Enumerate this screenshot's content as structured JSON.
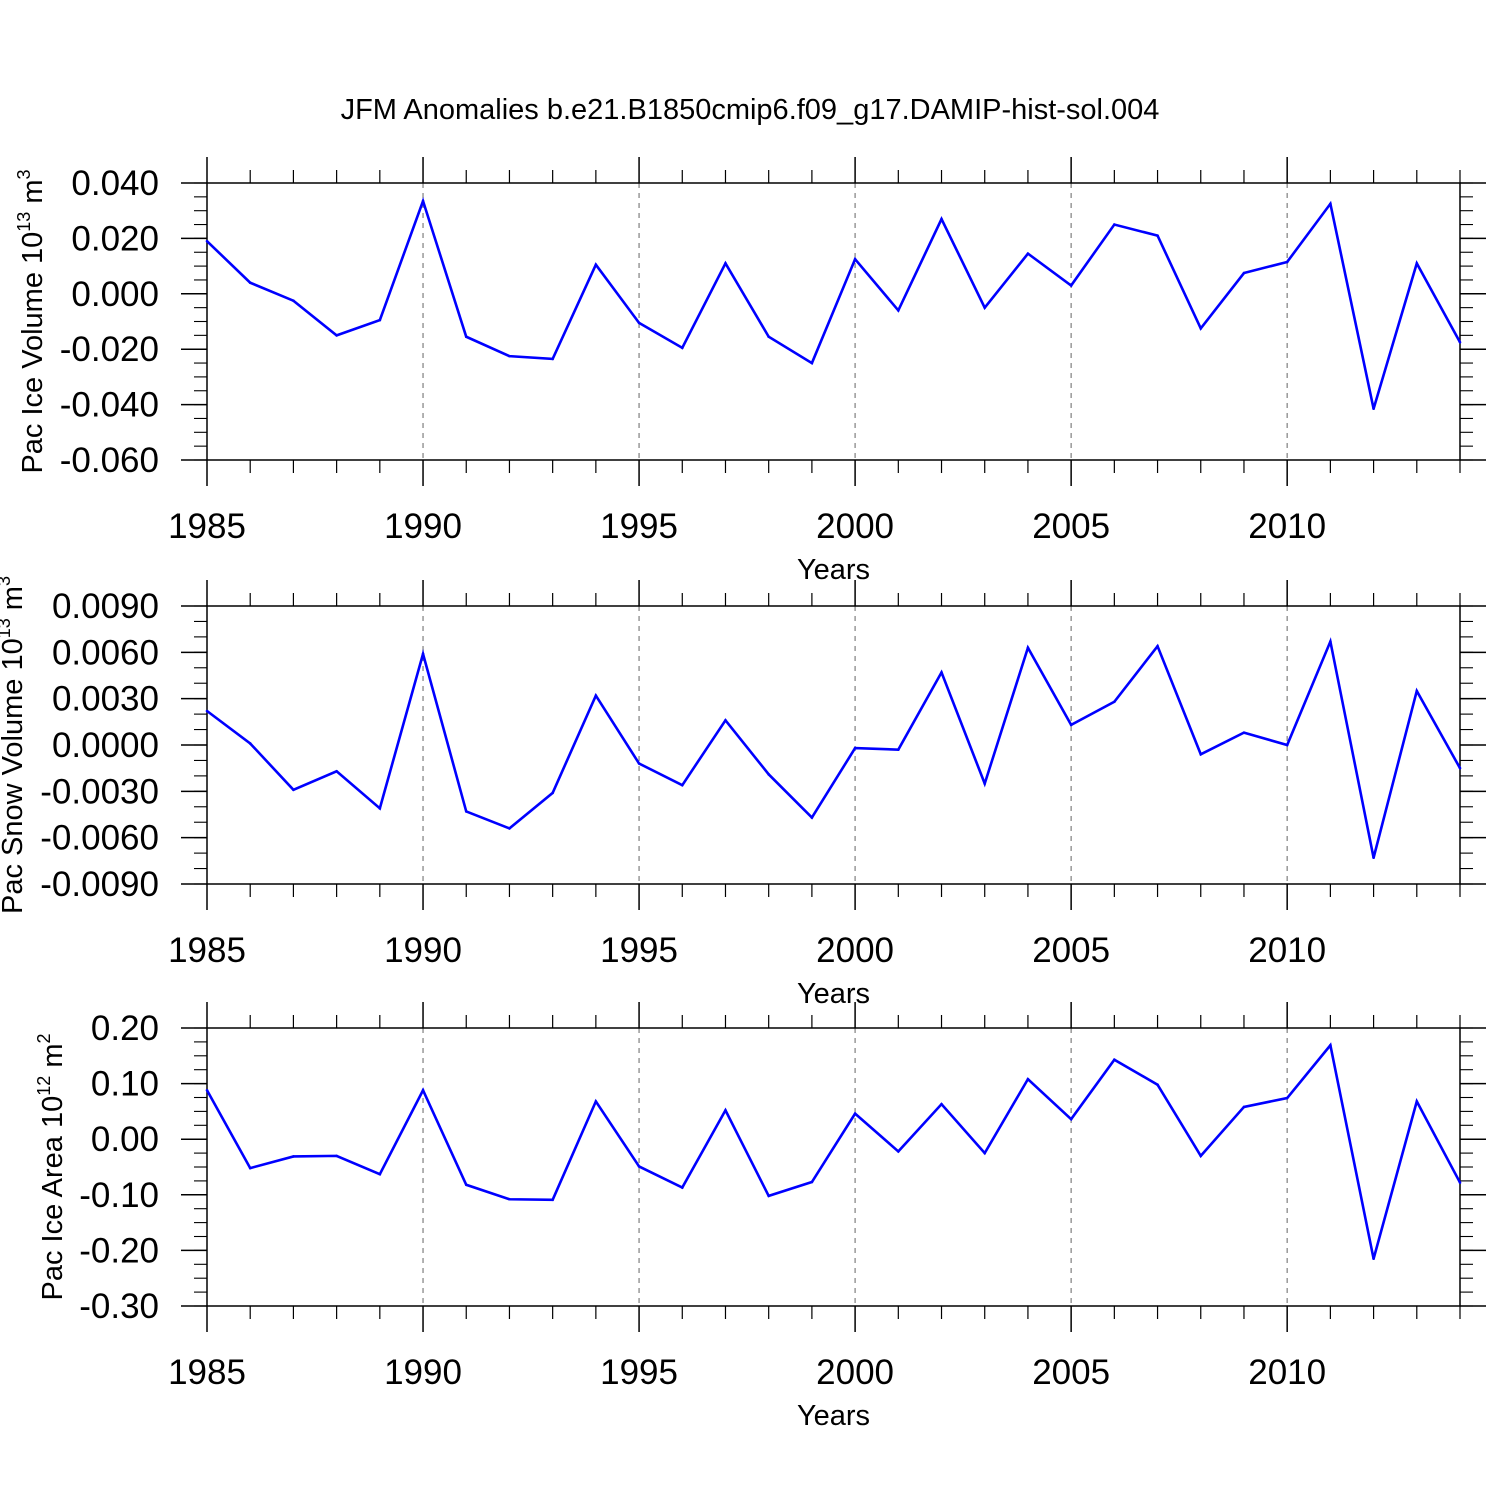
{
  "figure": {
    "title": "JFM Anomalies b.e21.B1850cmip6.f09_g17.DAMIP-hist-sol.004",
    "line_color": "#0000ff",
    "grid_color": "#888888"
  },
  "chart_data": [
    {
      "type": "line",
      "title": "",
      "xlabel": "Years",
      "ylabel": {
        "text": "Pac Ice Volume 10",
        "exponent": "13",
        "unit": " m",
        "unit_exponent": "3"
      },
      "xlim": [
        1985,
        2014
      ],
      "ylim": [
        -0.06,
        0.04
      ],
      "xticks": [
        1985,
        1990,
        1995,
        2000,
        2005,
        2010
      ],
      "xtick_labels": [
        "1985",
        "1990",
        "1995",
        "2000",
        "2005",
        "2010"
      ],
      "yticks": [
        -0.06,
        -0.04,
        -0.02,
        0.0,
        0.02,
        0.04
      ],
      "ytick_labels": [
        "-0.060",
        "-0.040",
        "-0.020",
        "0.000",
        "0.020",
        "0.040"
      ],
      "yminor_step": 0.005,
      "grid": "x-dashed",
      "x": [
        1985,
        1986,
        1987,
        1988,
        1989,
        1990,
        1991,
        1992,
        1993,
        1994,
        1995,
        1996,
        1997,
        1998,
        1999,
        2000,
        2001,
        2002,
        2003,
        2004,
        2005,
        2006,
        2007,
        2008,
        2009,
        2010,
        2011,
        2012,
        2013,
        2014
      ],
      "series": [
        {
          "name": "Pac Ice Volume",
          "values": [
            0.019,
            0.004,
            -0.0025,
            -0.015,
            -0.0095,
            0.0335,
            -0.0155,
            -0.0225,
            -0.0235,
            0.0105,
            -0.0105,
            -0.0195,
            0.011,
            -0.0155,
            -0.025,
            0.0125,
            -0.006,
            0.027,
            -0.005,
            0.0145,
            0.003,
            0.025,
            0.021,
            -0.0125,
            0.0075,
            0.0115,
            0.0325,
            -0.0415,
            0.011,
            -0.0175
          ]
        }
      ]
    },
    {
      "type": "line",
      "title": "",
      "xlabel": "Years",
      "ylabel": {
        "text": "Pac Snow Volume 10",
        "exponent": "13",
        "unit": " m",
        "unit_exponent": "3"
      },
      "xlim": [
        1985,
        2014
      ],
      "ylim": [
        -0.009,
        0.009
      ],
      "xticks": [
        1985,
        1990,
        1995,
        2000,
        2005,
        2010
      ],
      "xtick_labels": [
        "1985",
        "1990",
        "1995",
        "2000",
        "2005",
        "2010"
      ],
      "yticks": [
        -0.009,
        -0.006,
        -0.003,
        0.0,
        0.003,
        0.006,
        0.009
      ],
      "ytick_labels": [
        "-0.0090",
        "-0.0060",
        "-0.0030",
        "0.0000",
        "0.0030",
        "0.0060",
        "0.0090"
      ],
      "yminor_step": 0.001,
      "grid": "x-dashed",
      "x": [
        1985,
        1986,
        1987,
        1988,
        1989,
        1990,
        1991,
        1992,
        1993,
        1994,
        1995,
        1996,
        1997,
        1998,
        1999,
        2000,
        2001,
        2002,
        2003,
        2004,
        2005,
        2006,
        2007,
        2008,
        2009,
        2010,
        2011,
        2012,
        2013,
        2014
      ],
      "series": [
        {
          "name": "Pac Snow Volume",
          "values": [
            0.0022,
            0.0001,
            -0.0029,
            -0.0017,
            -0.0041,
            0.0059,
            -0.0043,
            -0.0054,
            -0.0031,
            0.0032,
            -0.0012,
            -0.0026,
            0.0016,
            -0.0019,
            -0.0047,
            -0.0002,
            -0.0003,
            0.0047,
            -0.0025,
            0.0063,
            0.0013,
            0.0028,
            0.0064,
            -0.0006,
            0.0008,
            0.0,
            0.0067,
            -0.0073,
            0.0035,
            -0.0015
          ]
        }
      ]
    },
    {
      "type": "line",
      "title": "",
      "xlabel": "Years",
      "ylabel": {
        "text": "Pac Ice Area 10",
        "exponent": "12",
        "unit": " m",
        "unit_exponent": "2"
      },
      "xlim": [
        1985,
        2014
      ],
      "ylim": [
        -0.3,
        0.2
      ],
      "xticks": [
        1985,
        1990,
        1995,
        2000,
        2005,
        2010
      ],
      "xtick_labels": [
        "1985",
        "1990",
        "1995",
        "2000",
        "2005",
        "2010"
      ],
      "yticks": [
        -0.3,
        -0.2,
        -0.1,
        0.0,
        0.1,
        0.2
      ],
      "ytick_labels": [
        "-0.30",
        "-0.20",
        "-0.10",
        "0.00",
        "0.10",
        "0.20"
      ],
      "yminor_step": 0.025,
      "grid": "x-dashed",
      "x": [
        1985,
        1986,
        1987,
        1988,
        1989,
        1990,
        1991,
        1992,
        1993,
        1994,
        1995,
        1996,
        1997,
        1998,
        1999,
        2000,
        2001,
        2002,
        2003,
        2004,
        2005,
        2006,
        2007,
        2008,
        2009,
        2010,
        2011,
        2012,
        2013,
        2014
      ],
      "series": [
        {
          "name": "Pac Ice Area",
          "values": [
            0.088,
            -0.052,
            -0.031,
            -0.03,
            -0.063,
            0.088,
            -0.082,
            -0.108,
            -0.109,
            0.068,
            -0.049,
            -0.087,
            0.052,
            -0.102,
            -0.077,
            0.046,
            -0.022,
            0.063,
            -0.025,
            0.108,
            0.036,
            0.143,
            0.098,
            -0.03,
            0.058,
            0.074,
            0.169,
            -0.215,
            0.068,
            -0.078
          ]
        }
      ]
    }
  ]
}
